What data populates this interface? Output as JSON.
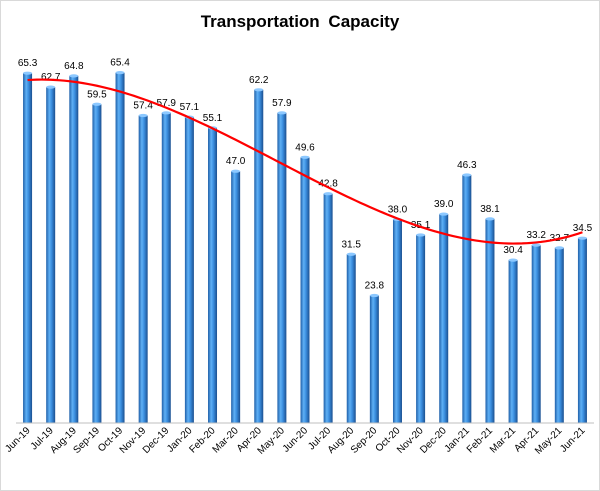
{
  "chart_data": {
    "type": "bar",
    "title": "Transportation  Capacity",
    "categories": [
      "Jun-19",
      "Jul-19",
      "Aug-19",
      "Sep-19",
      "Oct-19",
      "Nov-19",
      "Dec-19",
      "Jan-20",
      "Feb-20",
      "Mar-20",
      "Apr-20",
      "May-20",
      "Jun-20",
      "Jul-20",
      "Aug-20",
      "Sep-20",
      "Oct-20",
      "Nov-20",
      "Dec-20",
      "Jan-21",
      "Feb-21",
      "Mar-21",
      "Apr-21",
      "May-21",
      "Jun-21"
    ],
    "values": [
      65.3,
      62.7,
      64.8,
      59.5,
      65.4,
      57.4,
      57.9,
      57.1,
      55.1,
      47.0,
      62.2,
      57.9,
      49.6,
      42.8,
      31.5,
      23.8,
      38.0,
      35.1,
      39.0,
      46.3,
      38.1,
      30.4,
      33.2,
      32.7,
      34.5
    ],
    "data_labels": [
      "65.3",
      "62.7",
      "64.8",
      "59.5",
      "65.4",
      "57.4",
      "57.9",
      "57.1",
      "55.1",
      "47.0",
      "62.2",
      "57.9",
      "49.6",
      "42.8",
      "31.5",
      "23.8",
      "38.0",
      "35.1",
      "39.0",
      "46.3",
      "38.1",
      "30.4",
      "33.2",
      "32.7",
      "34.5"
    ],
    "ylim": [
      0,
      70
    ],
    "xlabel": "",
    "ylabel": "",
    "grid": false,
    "trendline": {
      "type": "polynomial",
      "color": "#ff0000"
    },
    "bar_color": "#2e86de"
  }
}
